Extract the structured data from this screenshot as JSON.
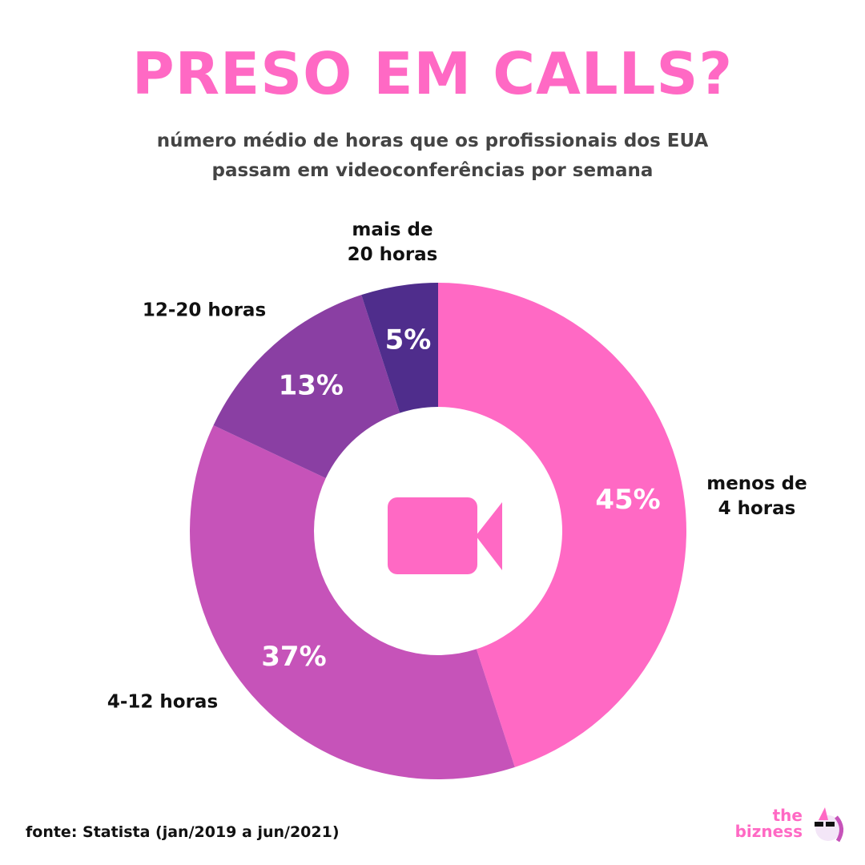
{
  "chart_data": {
    "type": "donut",
    "title": "PRESO EM CALLS?",
    "subtitle": "número médio de horas que os profissionais dos EUA\npassam em videoconferências por semana",
    "categories": [
      "menos de\n4 horas",
      "4-12 horas",
      "12-20 horas",
      "mais de\n20 horas"
    ],
    "values": [
      45,
      37,
      13,
      5
    ],
    "value_labels": [
      "45%",
      "37%",
      "13%",
      "5%"
    ],
    "colors": [
      "#ff69c4",
      "#c653b9",
      "#8a3fa3",
      "#4f2d8c"
    ],
    "source": "fonte: Statista (jan/2019 a jun/2021)",
    "logo": {
      "line1": "the",
      "line2": "bizness"
    }
  }
}
